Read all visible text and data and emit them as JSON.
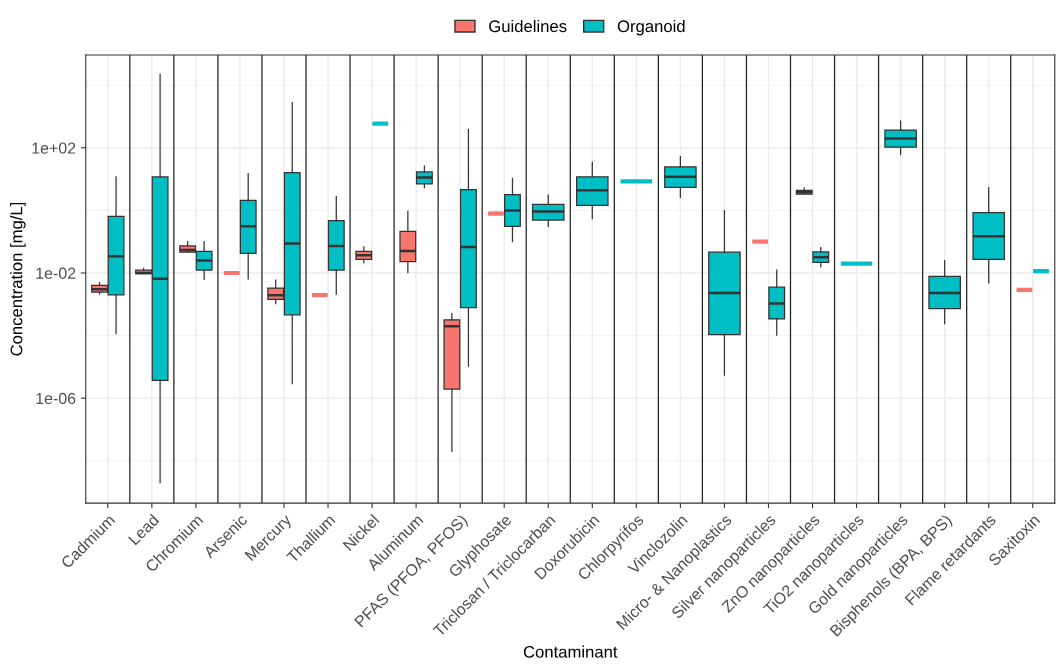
{
  "chart_data": {
    "type": "box",
    "xlabel": "Contaminant",
    "ylabel": "Concentration [mg/L]",
    "categories": [
      "Cadmium",
      "Lead",
      "Chromium",
      "Arsenic",
      "Mercury",
      "Thallium",
      "Nickel",
      "Aluminum",
      "PFAS (PFOA, PFOS)",
      "Glyphosate",
      "Triclosan / Triclocarban",
      "Doxorubicin",
      "Chlorpyrifos",
      "Vinclozolin",
      "Micro- & Nanoplastics",
      "Silver nanoparticles",
      "ZnO nanoparticles",
      "TiO2 nanoparticles",
      "Gold nanoparticles",
      "Bisphenols (BPA, BPS)",
      "Flame retardants",
      "Saxitoxin"
    ],
    "log": "y",
    "ylim": [
      4.4e-10,
      93000
    ],
    "yticks": [
      {
        "value": 1e-06,
        "label": "1e-06"
      },
      {
        "value": 0.01,
        "label": "1e-02"
      },
      {
        "value": 100,
        "label": "1e+02"
      }
    ],
    "grid": true,
    "legend": "top",
    "series": [
      {
        "name": "Guidelines",
        "color": "#f8766d",
        "boxes": [
          {
            "low": 0.0021,
            "q1": 0.00245,
            "median": 0.003,
            "q3": 0.004,
            "high": 0.0049
          },
          {
            "low": 0.0095,
            "q1": 0.0095,
            "median": 0.01,
            "q3": 0.0123,
            "high": 0.014
          },
          {
            "low": 0.046,
            "q1": 0.046,
            "median": 0.054,
            "q3": 0.073,
            "high": 0.1
          },
          {
            "low": 0.01,
            "q1": 0.01,
            "median": 0.01,
            "q3": 0.01,
            "high": 0.01
          },
          {
            "low": 0.00105,
            "q1": 0.00144,
            "median": 0.00195,
            "q3": 0.0033,
            "high": 0.0059
          },
          {
            "low": 0.00195,
            "q1": 0.00195,
            "median": 0.00195,
            "q3": 0.00195,
            "high": 0.00195
          },
          {
            "low": 0.0214,
            "q1": 0.027,
            "median": 0.037,
            "q3": 0.049,
            "high": 0.068
          },
          {
            "low": 0.0102,
            "q1": 0.023,
            "median": 0.05,
            "q3": 0.215,
            "high": 0.93
          },
          {
            "low": 2e-08,
            "q1": 1.95e-06,
            "median": 0.0002,
            "q3": 0.00032,
            "high": 0.0005
          },
          {
            "low": 0.79,
            "q1": 0.79,
            "median": 0.79,
            "q3": 0.79,
            "high": 0.9
          },
          null,
          null,
          null,
          null,
          null,
          {
            "low": 0.1,
            "q1": 0.1,
            "median": 0.1,
            "q3": 0.1,
            "high": 0.1
          },
          {
            "low": 3.3,
            "q1": 3.3,
            "median": 3.8,
            "q3": 4.4,
            "high": 5.2
          },
          null,
          null,
          null,
          null,
          {
            "low": 0.0029,
            "q1": 0.0029,
            "median": 0.0029,
            "q3": 0.0029,
            "high": 0.0029
          }
        ]
      },
      {
        "name": "Organoid",
        "color": "#00bfc4",
        "boxes": [
          {
            "low": 0.000115,
            "q1": 0.002,
            "median": 0.034,
            "q3": 0.65,
            "high": 11.7
          },
          {
            "low": 2e-09,
            "q1": 3.7e-06,
            "median": 0.0066,
            "q3": 11.7,
            "high": 22400
          },
          {
            "low": 0.0062,
            "q1": 0.0123,
            "median": 0.025,
            "q3": 0.049,
            "high": 0.1
          },
          {
            "low": 0.0065,
            "q1": 0.042,
            "median": 0.31,
            "q3": 2.1,
            "high": 15
          },
          {
            "low": 2.9e-06,
            "q1": 0.00046,
            "median": 0.087,
            "q3": 16,
            "high": 2800
          },
          {
            "low": 0.0021,
            "q1": 0.0123,
            "median": 0.073,
            "q3": 0.47,
            "high": 2.75
          },
          {
            "low": 590,
            "q1": 590,
            "median": 590,
            "q3": 590,
            "high": 590
          },
          {
            "low": 5.3,
            "q1": 7.0,
            "median": 11.2,
            "q3": 17,
            "high": 26
          },
          {
            "low": 1.05e-05,
            "q1": 0.00078,
            "median": 0.068,
            "q3": 4.6,
            "high": 380
          },
          {
            "low": 0.1,
            "q1": 0.31,
            "median": 1.0,
            "q3": 3.2,
            "high": 10.5
          },
          {
            "low": 0.31,
            "q1": 0.49,
            "median": 0.93,
            "q3": 1.57,
            "high": 3.1
          },
          {
            "low": 0.55,
            "q1": 1.46,
            "median": 4.4,
            "q3": 11.8,
            "high": 34
          },
          {
            "low": 8.5,
            "q1": 8.5,
            "median": 8.5,
            "q3": 8.5,
            "high": 8.5
          },
          {
            "low": 2.6,
            "q1": 5.4,
            "median": 11.8,
            "q3": 24.6,
            "high": 52
          },
          {
            "low": 5.4e-06,
            "q1": 0.000107,
            "median": 0.0023,
            "q3": 0.046,
            "high": 0.99
          },
          {
            "low": 0.000104,
            "q1": 0.00034,
            "median": 0.00105,
            "q3": 0.0035,
            "high": 0.0123
          },
          {
            "low": 0.016,
            "q1": 0.022,
            "median": 0.032,
            "q3": 0.047,
            "high": 0.065
          },
          {
            "low": 0.02,
            "q1": 0.02,
            "median": 0.02,
            "q3": 0.02,
            "high": 0.02
          },
          {
            "low": 61,
            "q1": 105,
            "median": 200,
            "q3": 370,
            "high": 710
          },
          {
            "low": 0.00024,
            "q1": 0.00072,
            "median": 0.0023,
            "q3": 0.0078,
            "high": 0.025
          },
          {
            "low": 0.0048,
            "q1": 0.027,
            "median": 0.148,
            "q3": 0.85,
            "high": 5.3
          },
          {
            "low": 0.0115,
            "q1": 0.0115,
            "median": 0.0115,
            "q3": 0.0115,
            "high": 0.0115
          }
        ]
      }
    ]
  }
}
